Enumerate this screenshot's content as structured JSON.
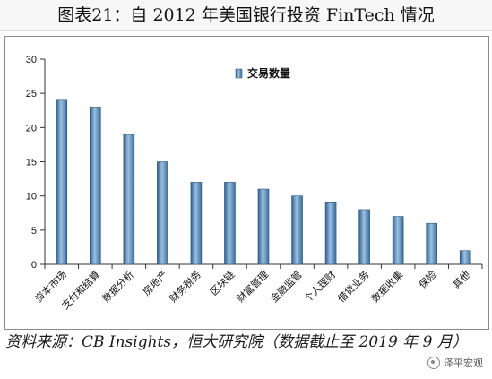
{
  "title": "图表21：自 2012 年美国银行投资 FinTech 情况",
  "source_note": "资料来源：CB Insights，恒大研究院（数据截止至 2019 年 9 月）",
  "watermark": "泽平宏观",
  "colors": {
    "bar_dark": "#2f5f8f",
    "bar_light": "#9cc0df",
    "axis": "#333333"
  },
  "chart_data": {
    "type": "bar",
    "categories": [
      "资本市场",
      "支付和结算",
      "数据分析",
      "房地产",
      "财务税务",
      "区块链",
      "财富管理",
      "金融监管",
      "个人理财",
      "借贷业务",
      "数据收集",
      "保险",
      "其他"
    ],
    "series": [
      {
        "name": "交易数量",
        "values": [
          24,
          23,
          19,
          15,
          12,
          12,
          11,
          10,
          9,
          8,
          7,
          6,
          2
        ]
      }
    ],
    "ylim": [
      0,
      30
    ],
    "yticks": [
      0,
      5,
      10,
      15,
      20,
      25,
      30
    ],
    "legend": "top-center",
    "grid": false
  }
}
